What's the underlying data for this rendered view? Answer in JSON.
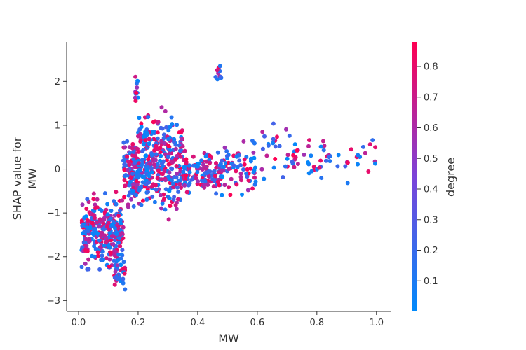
{
  "chart_data": {
    "type": "scatter",
    "title": "",
    "xlabel": "MW",
    "ylabel_lines": [
      "SHAP value for",
      "MW"
    ],
    "colorbar_label": "degree",
    "xlim": [
      -0.04,
      1.05
    ],
    "ylim": [
      -3.25,
      2.9
    ],
    "x_ticks": [
      0.0,
      0.2,
      0.4,
      0.6,
      0.8,
      1.0
    ],
    "x_tick_labels": [
      "0.0",
      "0.2",
      "0.4",
      "0.6",
      "0.8",
      "1.0"
    ],
    "y_ticks": [
      -3,
      -2,
      -1,
      0,
      1,
      2
    ],
    "y_tick_labels": [
      "−3",
      "−2",
      "−1",
      "0",
      "1",
      "2"
    ],
    "colorbar": {
      "range": [
        0.0,
        0.88
      ],
      "ticks": [
        0.1,
        0.2,
        0.3,
        0.4,
        0.5,
        0.6,
        0.7,
        0.8
      ],
      "tick_labels": [
        "0.1",
        "0.2",
        "0.3",
        "0.4",
        "0.5",
        "0.6",
        "0.7",
        "0.8"
      ],
      "colors": [
        "#008afb",
        "#7b43d9",
        "#ff0052"
      ]
    },
    "grid": false,
    "clusters": [
      {
        "x": [
          0.01,
          0.15
        ],
        "y": [
          -2.6,
          -0.3
        ],
        "n": 320
      },
      {
        "x": [
          0.12,
          0.16
        ],
        "y": [
          -2.9,
          -1.8
        ],
        "n": 30
      },
      {
        "x": [
          0.15,
          0.2
        ],
        "y": [
          -1.2,
          1.0
        ],
        "n": 120
      },
      {
        "x": [
          0.19,
          0.2
        ],
        "y": [
          1.2,
          2.4
        ],
        "n": 12
      },
      {
        "x": [
          0.2,
          0.35
        ],
        "y": [
          -1.3,
          1.6
        ],
        "n": 320
      },
      {
        "x": [
          0.35,
          0.48
        ],
        "y": [
          -0.7,
          0.6
        ],
        "n": 140
      },
      {
        "x": [
          0.46,
          0.48
        ],
        "y": [
          1.9,
          2.6
        ],
        "n": 10
      },
      {
        "x": [
          0.48,
          0.6
        ],
        "y": [
          -0.8,
          0.8
        ],
        "n": 70
      },
      {
        "x": [
          0.6,
          0.75
        ],
        "y": [
          -0.6,
          1.5
        ],
        "n": 35
      },
      {
        "x": [
          0.75,
          1.0
        ],
        "y": [
          -0.4,
          0.9
        ],
        "n": 45
      }
    ]
  }
}
